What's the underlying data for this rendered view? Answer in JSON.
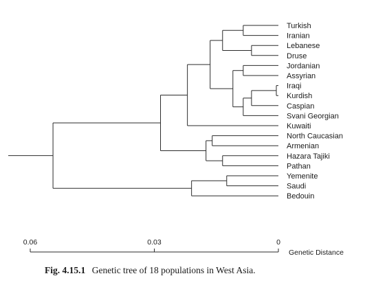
{
  "figure": {
    "caption_label": "Fig. 4.15.1",
    "caption_text": "Genetic tree of 18 populations in West Asia."
  },
  "axis": {
    "label": "Genetic Distance",
    "ticks": [
      {
        "value": 0.06,
        "label": "0.06"
      },
      {
        "value": 0.03,
        "label": "0.03"
      },
      {
        "value": 0,
        "label": "0"
      }
    ]
  },
  "tree": {
    "leaves": [
      "Turkish",
      "Iranian",
      "Lebanese",
      "Druse",
      "Jordanian",
      "Assyrian",
      "Iraqi",
      "Kurdish",
      "Caspian",
      "Svani Georgian",
      "Kuwaiti",
      "North Caucasian",
      "Armenian",
      "Hazara Tajiki",
      "Pathan",
      "Yemenite",
      "Saudi",
      "Bedouin"
    ],
    "root_height": 0.06,
    "nodes": [
      {
        "children": [
          "Turkish",
          "Iranian"
        ],
        "height": 0.0085
      },
      {
        "children": [
          "Lebanese",
          "Druse"
        ],
        "height": 0.0065
      },
      {
        "children": [
          0,
          1
        ],
        "height": 0.0135
      },
      {
        "children": [
          "Iraqi",
          "Kurdish"
        ],
        "height": 0.0005
      },
      {
        "children": [
          3,
          "Caspian"
        ],
        "height": 0.0065
      },
      {
        "children": [
          4,
          "Svani Georgian"
        ],
        "height": 0.0085
      },
      {
        "children": [
          "Jordanian",
          "Assyrian"
        ],
        "height": 0.0085
      },
      {
        "children": [
          6,
          5
        ],
        "height": 0.011
      },
      {
        "children": [
          2,
          7
        ],
        "height": 0.0165
      },
      {
        "children": [
          8,
          "Kuwaiti"
        ],
        "height": 0.022
      },
      {
        "children": [
          "North Caucasian",
          "Armenian"
        ],
        "height": 0.016
      },
      {
        "children": [
          "Hazara Tajiki",
          "Pathan"
        ],
        "height": 0.0135
      },
      {
        "children": [
          10,
          11
        ],
        "height": 0.0175
      },
      {
        "children": [
          9,
          12
        ],
        "height": 0.0285
      },
      {
        "children": [
          "Yemenite",
          "Saudi"
        ],
        "height": 0.0125
      },
      {
        "children": [
          14,
          "Bedouin"
        ],
        "height": 0.021
      },
      {
        "children": [
          13,
          15
        ],
        "height": 0.0545
      }
    ]
  }
}
